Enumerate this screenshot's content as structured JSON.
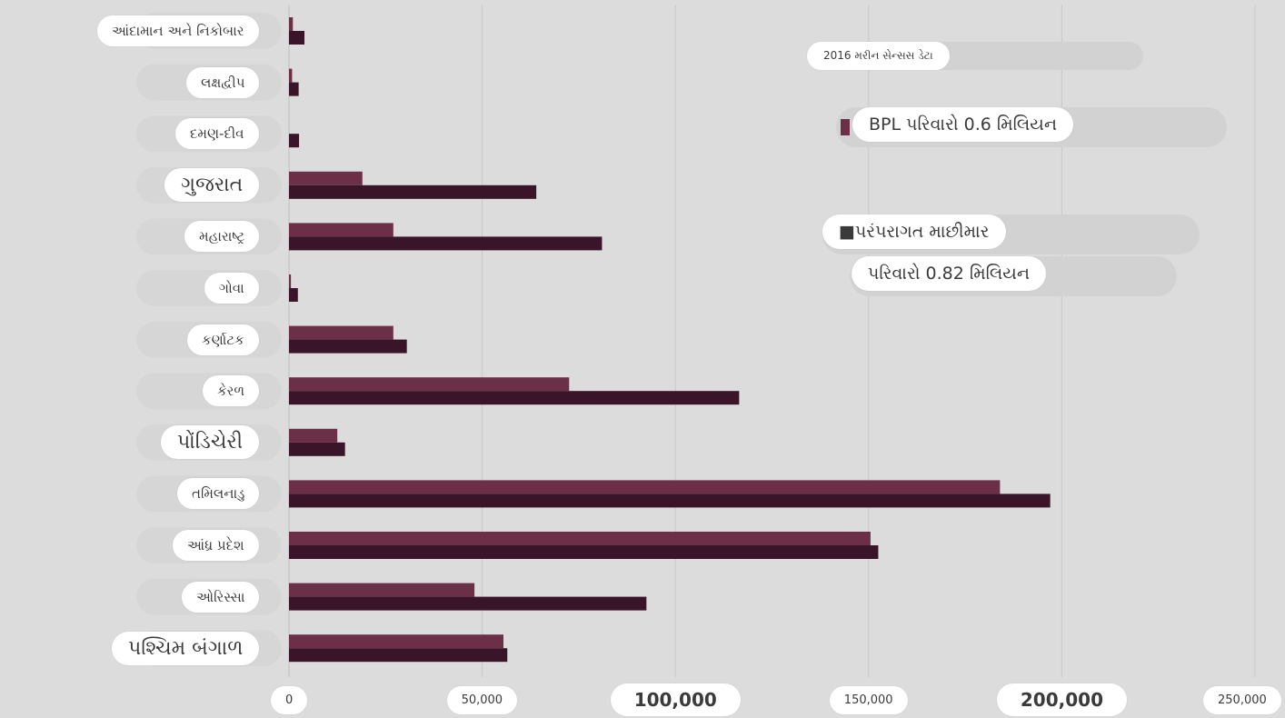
{
  "chart_data": {
    "type": "bar",
    "orientation": "horizontal",
    "categories": [
      "આંદામાન અને નિકોબાર",
      "લક્ષદ્વીપ",
      "દમણ-દીવ",
      "ગુજરાત",
      "મહારાષ્ટ્ર",
      "ગોવા",
      "કર્ણાટક",
      "કેરળ",
      "પોંડિચેરી",
      "તમિલનાડુ",
      "આંધ્ર પ્રદેશ",
      "ઓરિસ્સા",
      "પશ્ચિમ બંગાળ"
    ],
    "series": [
      {
        "name": "BPL પરિવારો 0.6 મિલિયન",
        "color": "#6b2f48",
        "values": [
          1000,
          800,
          0,
          19000,
          27000,
          500,
          27000,
          72500,
          12500,
          184000,
          150500,
          48000,
          55500
        ]
      },
      {
        "name": "પરંપરાગત માછીમાર પરિવારો 0.82 મિલિયન",
        "color": "#3a1428",
        "values": [
          4000,
          2500,
          2600,
          64000,
          81000,
          2300,
          30500,
          116500,
          14500,
          197000,
          152500,
          92500,
          56500
        ]
      }
    ],
    "xticks": [
      "0",
      "50,000",
      "100,000",
      "150,000",
      "200,000",
      "250,000"
    ],
    "xlim": [
      0,
      250000
    ],
    "grid": true,
    "legend_position": "top-right",
    "annotation": "2016 મરીન સેન્સસ ડેટા",
    "legend_lines": {
      "bpl": "BPL પરિવારો 0.6 મિલિયન",
      "traditional_1": "■પરંપરાગત માછીમાર",
      "traditional_2": "પરિવારો 0.82 મિલિયન"
    }
  }
}
